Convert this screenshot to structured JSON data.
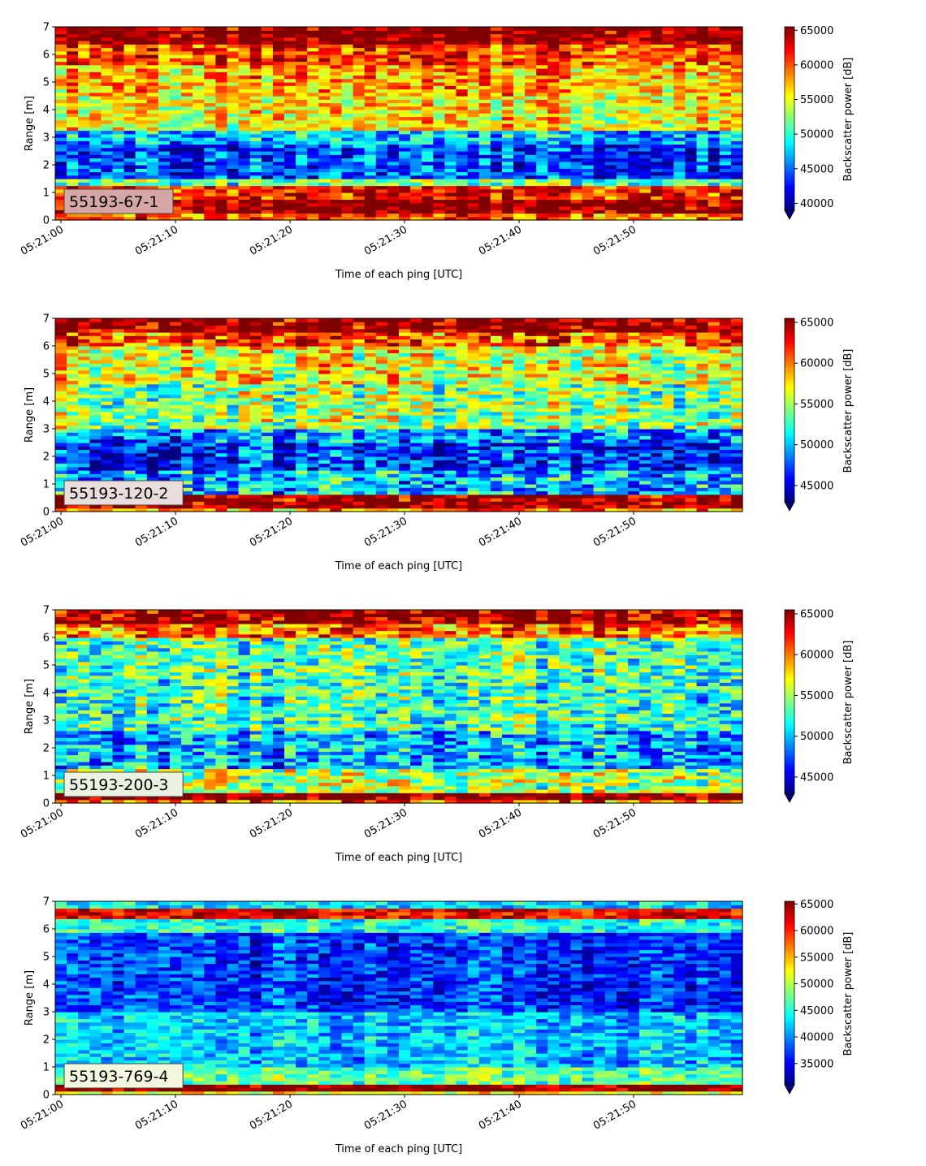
{
  "chart_data": [
    {
      "type": "heatmap",
      "label": "55193-67-1",
      "ylabel": "Range [m]",
      "xlabel": "Time of each ping [UTC]",
      "colorbar_label": "Backscatter power [dB]",
      "ylim": [
        0,
        7
      ],
      "yticks": [
        0,
        1,
        2,
        3,
        4,
        5,
        6,
        7
      ],
      "xlim_seconds": [
        -0.5,
        59.5
      ],
      "xticks": [
        "05:21:00",
        "05:21:10",
        "05:21:20",
        "05:21:30",
        "05:21:40",
        "05:21:50"
      ],
      "color_range": [
        39000,
        65500
      ],
      "colorbar_ticks": [
        40000,
        45000,
        50000,
        55000,
        60000,
        65000
      ],
      "colormap": "jet",
      "label_box_color": "#d6a6a6",
      "profile": [
        [
          0,
          0.15,
          60000
        ],
        [
          0.25,
          0.75,
          65500
        ],
        [
          0.85,
          1.2,
          62000
        ],
        [
          1.25,
          1.5,
          51000
        ],
        [
          1.6,
          2.7,
          44000
        ],
        [
          2.8,
          3.2,
          47000
        ],
        [
          3.3,
          4.5,
          55500
        ],
        [
          4.6,
          5.6,
          57500
        ],
        [
          5.7,
          6.3,
          60500
        ],
        [
          6.4,
          7,
          65500
        ]
      ]
    },
    {
      "type": "heatmap",
      "label": "55193-120-2",
      "ylabel": "Range [m]",
      "xlabel": "Time of each ping [UTC]",
      "colorbar_label": "Backscatter power [dB]",
      "ylim": [
        0,
        7
      ],
      "yticks": [
        0,
        1,
        2,
        3,
        4,
        5,
        6,
        7
      ],
      "xlim_seconds": [
        -0.5,
        59.5
      ],
      "xticks": [
        "05:21:00",
        "05:21:10",
        "05:21:20",
        "05:21:30",
        "05:21:40",
        "05:21:50"
      ],
      "color_range": [
        43000,
        65500
      ],
      "colorbar_ticks": [
        45000,
        50000,
        55000,
        60000,
        65000
      ],
      "colormap": "jet",
      "label_box_color": "#e8dcdc",
      "profile": [
        [
          0,
          0.1,
          60000
        ],
        [
          0.1,
          0.55,
          65500
        ],
        [
          0.6,
          1.4,
          50000
        ],
        [
          1.5,
          2.5,
          46500
        ],
        [
          2.6,
          3.0,
          49000
        ],
        [
          3.1,
          4.6,
          54500
        ],
        [
          4.7,
          5.9,
          56500
        ],
        [
          6.0,
          6.4,
          61000
        ],
        [
          6.5,
          7,
          65500
        ]
      ]
    },
    {
      "type": "heatmap",
      "label": "55193-200-3",
      "ylabel": "Range [m]",
      "xlabel": "Time of each ping [UTC]",
      "colorbar_label": "Backscatter power [dB]",
      "ylim": [
        0,
        7
      ],
      "yticks": [
        0,
        1,
        2,
        3,
        4,
        5,
        6,
        7
      ],
      "xlim_seconds": [
        -0.5,
        59.5
      ],
      "xticks": [
        "05:21:00",
        "05:21:10",
        "05:21:20",
        "05:21:30",
        "05:21:40",
        "05:21:50"
      ],
      "color_range": [
        43000,
        65500
      ],
      "colorbar_ticks": [
        45000,
        50000,
        55000,
        60000,
        65000
      ],
      "colormap": "jet",
      "label_box_color": "#eaf3e2",
      "profile": [
        [
          0,
          0.1,
          60000
        ],
        [
          0.1,
          0.4,
          65500
        ],
        [
          0.45,
          1.2,
          55000
        ],
        [
          1.3,
          2.6,
          49500
        ],
        [
          2.7,
          4.5,
          52500
        ],
        [
          4.6,
          6.0,
          53000
        ],
        [
          6.1,
          6.5,
          60000
        ],
        [
          6.6,
          7,
          65000
        ]
      ]
    },
    {
      "type": "heatmap",
      "label": "55193-769-4",
      "ylabel": "Range [m]",
      "xlabel": "Time of each ping [UTC]",
      "colorbar_label": "Backscatter power [dB]",
      "ylim": [
        0,
        7
      ],
      "yticks": [
        0,
        1,
        2,
        3,
        4,
        5,
        6,
        7
      ],
      "xlim_seconds": [
        -0.5,
        59.5
      ],
      "xticks": [
        "05:21:00",
        "05:21:10",
        "05:21:20",
        "05:21:30",
        "05:21:40",
        "05:21:50"
      ],
      "color_range": [
        31000,
        65500
      ],
      "colorbar_ticks": [
        35000,
        40000,
        45000,
        50000,
        55000,
        60000,
        65000
      ],
      "colormap": "jet",
      "label_box_color": "#f4f7dd",
      "profile": [
        [
          0,
          0.1,
          52000
        ],
        [
          0.1,
          0.3,
          65500
        ],
        [
          0.35,
          1.0,
          47000
        ],
        [
          1.1,
          3.0,
          42000
        ],
        [
          3.1,
          5.8,
          37000
        ],
        [
          5.9,
          6.4,
          45000
        ],
        [
          6.45,
          6.75,
          62000
        ],
        [
          6.8,
          7,
          43000
        ]
      ]
    }
  ]
}
